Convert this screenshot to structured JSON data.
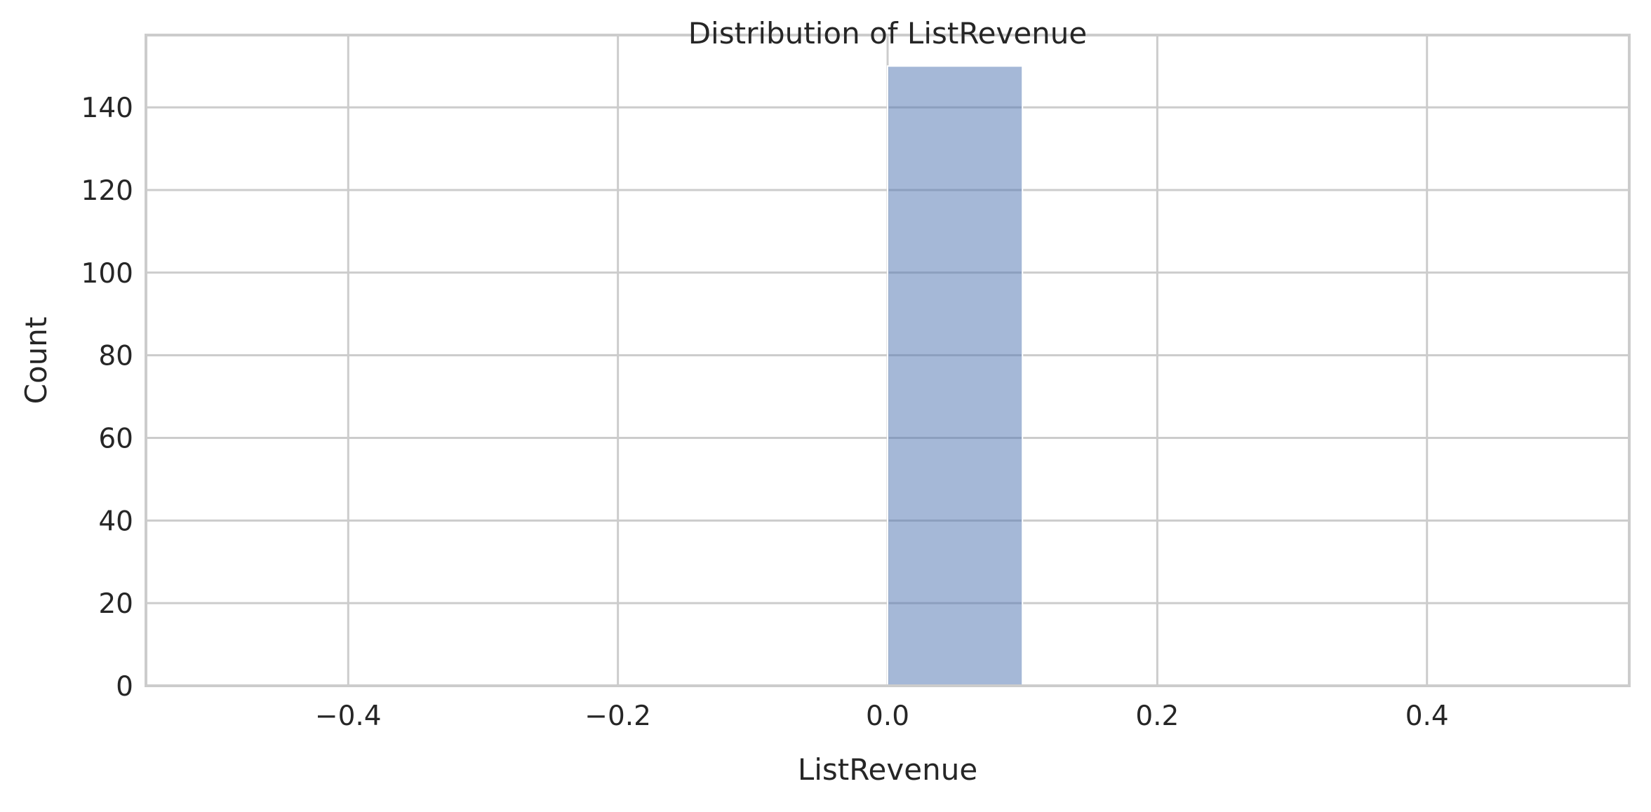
{
  "chart_data": {
    "type": "bar",
    "title": "Distribution of ListRevenue",
    "xlabel": "ListRevenue",
    "ylabel": "Count",
    "xlim": [
      -0.55,
      0.55
    ],
    "ylim": [
      0,
      157.5
    ],
    "x_ticks": [
      -0.4,
      -0.2,
      0.0,
      0.2,
      0.4
    ],
    "x_tick_labels": [
      "−0.4",
      "−0.2",
      "0.0",
      "0.2",
      "0.4"
    ],
    "y_ticks": [
      0,
      20,
      40,
      60,
      80,
      100,
      120,
      140
    ],
    "y_tick_labels": [
      "0",
      "20",
      "40",
      "60",
      "80",
      "100",
      "120",
      "140"
    ],
    "bins": [
      {
        "x_start": 0.0,
        "x_end": 0.1,
        "count": 150
      }
    ],
    "grid": true,
    "legend": "none",
    "colors": {
      "bar": "#4c72b0",
      "bar_opacity": 0.5,
      "grid": "#cccccc",
      "spine": "#cccccc",
      "text": "#262626",
      "background": "#ffffff"
    }
  }
}
